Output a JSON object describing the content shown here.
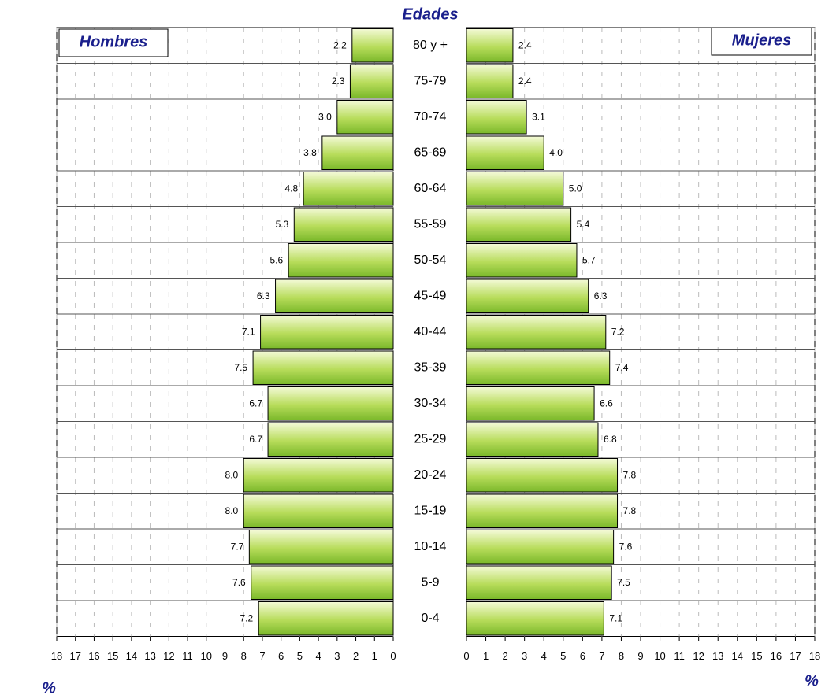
{
  "chart_data": {
    "type": "pyramid",
    "title": "Edades",
    "xlabel": "%",
    "categories": [
      "80 y +",
      "75-79",
      "70-74",
      "65-69",
      "60-64",
      "55-59",
      "50-54",
      "45-49",
      "40-44",
      "35-39",
      "30-34",
      "25-29",
      "20-24",
      "15-19",
      "10-14",
      "5-9",
      "0-4"
    ],
    "series": [
      {
        "name": "Hombres",
        "color": "#8cc63f",
        "values": [
          2.2,
          2.3,
          3.0,
          3.8,
          4.8,
          5.3,
          5.6,
          6.3,
          7.1,
          7.5,
          6.7,
          6.7,
          8.0,
          8.0,
          7.7,
          7.6,
          7.2
        ],
        "value_labels": [
          "2.2",
          "2.3",
          "3.0",
          "3.8",
          "4.8",
          "5.3",
          "5.6",
          "6.3",
          "7.1",
          "7.5",
          "6.7",
          "6.7",
          "8.0",
          "8.0",
          "7.7",
          "7.6",
          "7.2"
        ]
      },
      {
        "name": "Mujeres",
        "color": "#8cc63f",
        "values": [
          2.4,
          2.4,
          3.1,
          4.0,
          5.0,
          5.4,
          5.7,
          6.3,
          7.2,
          7.4,
          6.6,
          6.8,
          7.8,
          7.8,
          7.6,
          7.5,
          7.1
        ],
        "value_labels": [
          "2.4",
          "2.4",
          "3.1",
          "4.0",
          "5.0",
          "5.4",
          "5.7",
          "6.3",
          "7.2",
          "7.4",
          "6.6",
          "6.8",
          "7.8",
          "7.8",
          "7.6",
          "7.5",
          "7.1"
        ]
      }
    ],
    "xlim": [
      0,
      18
    ],
    "xticks": [
      0,
      1,
      2,
      3,
      4,
      5,
      6,
      7,
      8,
      9,
      10,
      11,
      12,
      13,
      14,
      15,
      16,
      17,
      18
    ],
    "grid": true
  }
}
